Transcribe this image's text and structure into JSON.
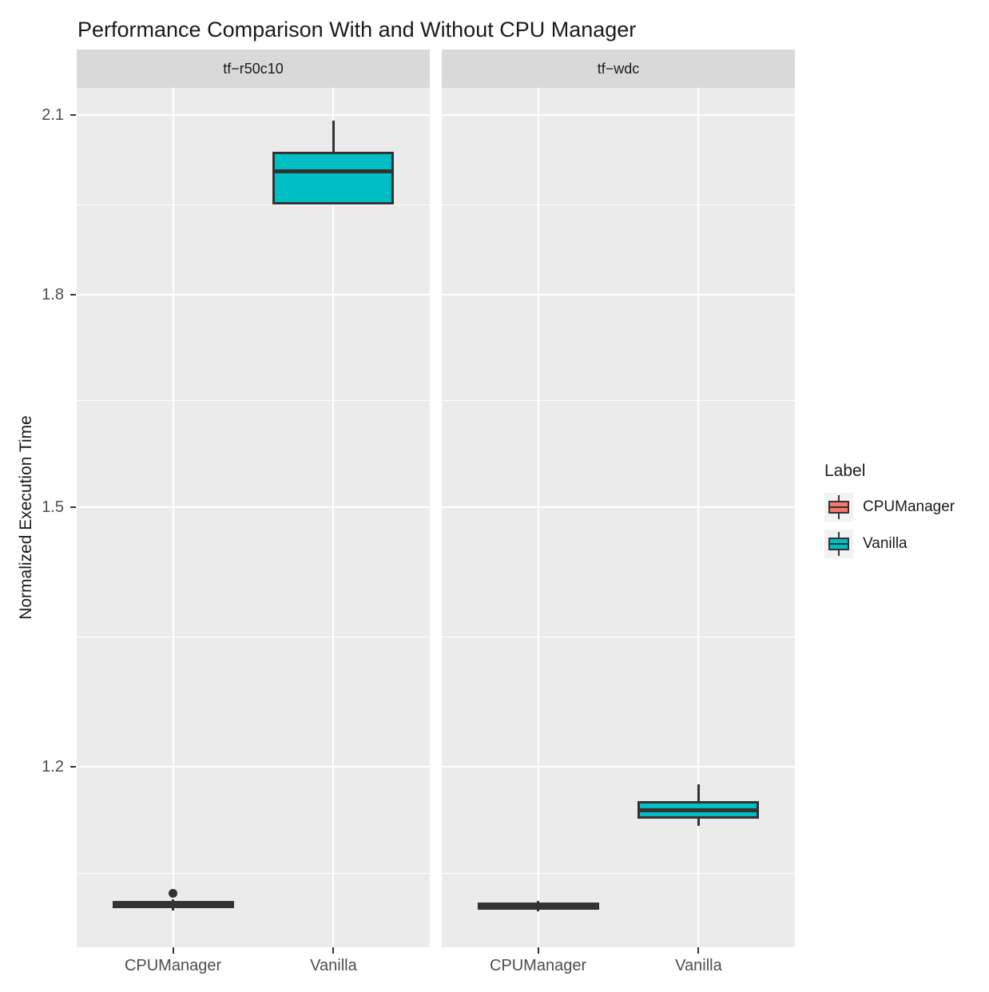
{
  "chart_data": {
    "type": "boxplot",
    "title": "Performance Comparison With and Without CPU Manager",
    "ylabel": "Normalized Execution Time",
    "xlabel": "",
    "scale": "log",
    "ylim": [
      1.028,
      2.149
    ],
    "grid": "on",
    "legend_position": "right",
    "y_major_breaks": [
      2.1,
      1.8,
      1.5,
      1.2
    ],
    "y_tick_labels": [
      "2.1",
      "1.8",
      "1.5",
      "1.2"
    ],
    "y_minor_breaks": [
      1.944,
      1.643,
      1.342,
      1.095
    ],
    "categories": [
      "CPUManager",
      "Vanilla"
    ],
    "legend": {
      "title": "Label",
      "entries": [
        {
          "label": "CPUManager",
          "color": "#F8766D"
        },
        {
          "label": "Vanilla",
          "color": "#00BFC4"
        }
      ]
    },
    "facets": [
      {
        "label": "tf−r50c10",
        "boxes": [
          {
            "category": "CPUManager",
            "color": "#F8766D",
            "whisker_low": 1.061,
            "q1": 1.063,
            "median": 1.066,
            "q3": 1.07,
            "whisker_high": 1.071,
            "outliers": [
              1.077
            ]
          },
          {
            "category": "Vanilla",
            "color": "#00BFC4",
            "whisker_low": 1.945,
            "q1": 1.945,
            "median": 2.0,
            "q3": 2.035,
            "whisker_high": 2.09,
            "outliers": []
          }
        ]
      },
      {
        "label": "tf−wdc",
        "boxes": [
          {
            "category": "CPUManager",
            "color": "#F8766D",
            "whisker_low": 1.06,
            "q1": 1.062,
            "median": 1.064,
            "q3": 1.068,
            "whisker_high": 1.07,
            "outliers": []
          },
          {
            "category": "Vanilla",
            "color": "#00BFC4",
            "whisker_low": 1.141,
            "q1": 1.148,
            "median": 1.156,
            "q3": 1.165,
            "whisker_high": 1.182,
            "outliers": []
          }
        ]
      }
    ],
    "colors": {
      "panel_bg": "#EBEBEB",
      "strip_bg": "#D9D9D9",
      "grid": "#FFFFFF",
      "box_border": "#333333",
      "axis_text": "#4D4D4D",
      "title_text": "#1A1A1A"
    }
  }
}
